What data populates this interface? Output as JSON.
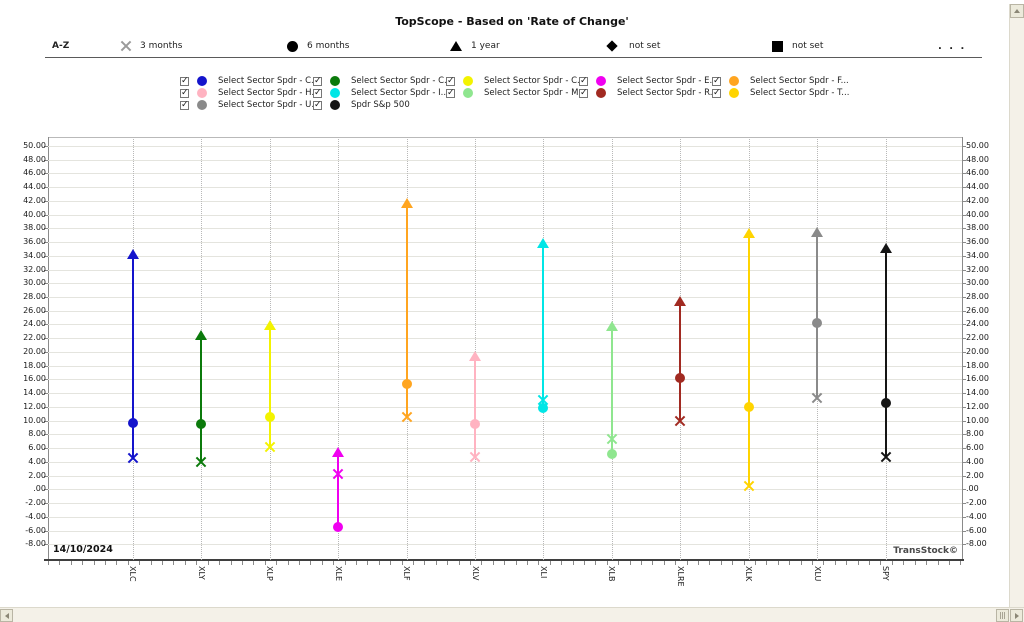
{
  "window": {
    "title": "TopScope - Based on 'Rate of Change'"
  },
  "toolbar": {
    "sort_label": "A-Z",
    "items": [
      {
        "icon": "x-marker-icon",
        "label": "3 months"
      },
      {
        "icon": "circle-marker-icon",
        "label": "6 months"
      },
      {
        "icon": "triangle-marker-icon",
        "label": "1 year"
      },
      {
        "icon": "diamond-marker-icon",
        "label": "not set"
      },
      {
        "icon": "square-marker-icon",
        "label": "not set"
      }
    ],
    "more_label": ". . ."
  },
  "legend": {
    "items": [
      {
        "label": "Select Sector Spdr - C...",
        "color": "#1414CC",
        "checked": true
      },
      {
        "label": "Select Sector Spdr - C...",
        "color": "#0B7A0B",
        "checked": true
      },
      {
        "label": "Select Sector Spdr - C...",
        "color": "#F3F300",
        "checked": true
      },
      {
        "label": "Select Sector Spdr - E...",
        "color": "#F000F0",
        "checked": true
      },
      {
        "label": "Select Sector Spdr - F...",
        "color": "#FFA520",
        "checked": true
      },
      {
        "label": "Select Sector Spdr - H...",
        "color": "#FFB3C1",
        "checked": true
      },
      {
        "label": "Select Sector Spdr - I...",
        "color": "#00E6E6",
        "checked": true
      },
      {
        "label": "Select Sector Spdr - M...",
        "color": "#8FE68F",
        "checked": true
      },
      {
        "label": "Select Sector Spdr - R...",
        "color": "#A12A21",
        "checked": true
      },
      {
        "label": "Select Sector Spdr - T...",
        "color": "#FFD400",
        "checked": true
      },
      {
        "label": "Select Sector Spdr - U...",
        "color": "#8A8A8A",
        "checked": true
      },
      {
        "label": "Spdr S&p 500",
        "color": "#151515",
        "checked": true
      }
    ]
  },
  "chart_data": {
    "type": "scatter",
    "title": "TopScope - Based on 'Rate of Change'",
    "xlabel": "",
    "ylabel": "",
    "ylim": [
      -8,
      50
    ],
    "ytick_step": 2,
    "grid": true,
    "marker_periods": {
      "x": "3 months",
      "circle": "6 months",
      "triangle": "1 year"
    },
    "categories": [
      "XLC",
      "XLY",
      "XLP",
      "XLE",
      "XLF",
      "XLV",
      "XLI",
      "XLB",
      "XLRE",
      "XLK",
      "XLU",
      "SPY"
    ],
    "colors": [
      "#1414CC",
      "#0B7A0B",
      "#F3F300",
      "#F000F0",
      "#FFA520",
      "#FFB3C1",
      "#00E6E6",
      "#8FE68F",
      "#A12A21",
      "#FFD400",
      "#8A8A8A",
      "#151515"
    ],
    "series": [
      {
        "name": "3 months",
        "marker": "x",
        "values": [
          4.5,
          4.0,
          6.1,
          2.3,
          10.6,
          4.7,
          13.0,
          7.3,
          9.9,
          0.5,
          13.3,
          4.7
        ]
      },
      {
        "name": "6 months",
        "marker": "circle",
        "values": [
          9.7,
          9.5,
          10.5,
          -5.5,
          15.3,
          9.5,
          11.9,
          5.2,
          16.2,
          12.0,
          24.2,
          12.6
        ]
      },
      {
        "name": "1 year",
        "marker": "triangle",
        "values": [
          34.3,
          22.5,
          23.9,
          5.4,
          41.7,
          19.4,
          35.8,
          23.8,
          27.4,
          37.3,
          37.4,
          35.1
        ]
      }
    ],
    "annotations": {
      "date": "14/10/2024",
      "brand": "TransStock©"
    }
  }
}
